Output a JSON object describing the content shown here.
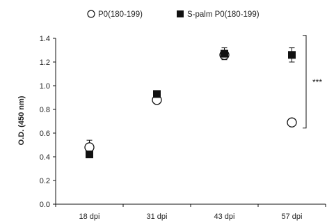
{
  "chart_data": {
    "type": "scatter",
    "title": "",
    "xlabel": "",
    "ylabel": "O.D. (450 nm)",
    "categories": [
      "18 dpi",
      "31 dpi",
      "43 dpi",
      "57 dpi"
    ],
    "ylim": [
      0.0,
      1.4
    ],
    "yticks": [
      "0.0",
      "0.2",
      "0.4",
      "0.6",
      "0.8",
      "1.0",
      "1.2",
      "1.4"
    ],
    "grid": false,
    "legend_position": "top",
    "series": [
      {
        "name": "P0(180-199)",
        "marker": "open-circle",
        "color": "#000000",
        "values": [
          0.48,
          0.88,
          1.26,
          0.69
        ],
        "error": [
          0.06,
          0.01,
          0.04,
          0.0
        ]
      },
      {
        "name": "S-palm P0(180-199)",
        "marker": "filled-square",
        "color": "#000000",
        "values": [
          0.42,
          0.93,
          1.27,
          1.26
        ],
        "error": [
          0.02,
          0.01,
          0.05,
          0.06
        ]
      }
    ],
    "annotations": [
      {
        "text": "***",
        "between_series_at": "57 dpi"
      }
    ]
  }
}
